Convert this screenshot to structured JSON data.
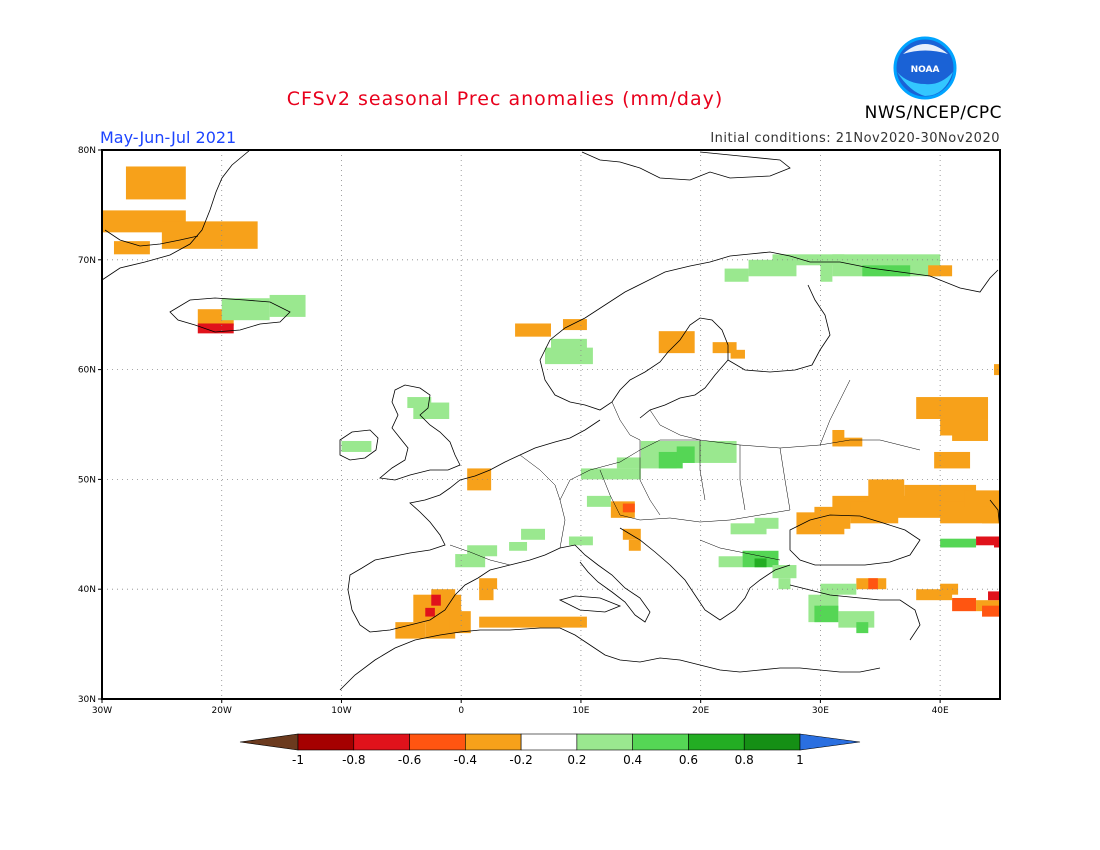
{
  "header": {
    "title": "CFSv2 seasonal Prec anomalies (mm/day)",
    "agency": "NWS/NCEP/CPC",
    "season": "May-Jun-Jul 2021",
    "initial_conditions": "Initial conditions: 21Nov2020-30Nov2020",
    "logo_text": "NOAA"
  },
  "axes": {
    "lat_labels": [
      "30N",
      "40N",
      "50N",
      "60N",
      "70N",
      "80N"
    ],
    "lon_labels": [
      "30W",
      "20W",
      "10W",
      "0",
      "10E",
      "20E",
      "30E",
      "40E"
    ]
  },
  "colorbar": {
    "labels": [
      "-1",
      "-0.8",
      "-0.6",
      "-0.4",
      "-0.2",
      "0.2",
      "0.4",
      "0.6",
      "0.8",
      "1"
    ],
    "colors": [
      "#6b3a1e",
      "#a50000",
      "#e0121b",
      "#ff5511",
      "#f7a11a",
      "#ffffff",
      "#9ae88f",
      "#55d655",
      "#23ad23",
      "#158f15",
      "#2a6fe0"
    ]
  },
  "map": {
    "lon_range": [
      -30,
      45
    ],
    "lat_range": [
      30,
      80
    ],
    "anomaly_colors": {
      "dry1": "#f7a11a",
      "dry2": "#ff5511",
      "dry3": "#e0121b",
      "wet1": "#9ae88f",
      "wet2": "#55d655",
      "wet3": "#23ad23"
    }
  }
}
